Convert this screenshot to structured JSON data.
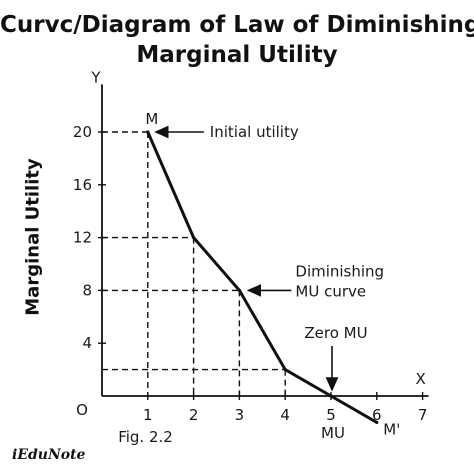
{
  "title_lines": [
    "Curvc/Diagram of Law of Diminishing",
    "Marginal Utility"
  ],
  "ylabel": "Marginal Utility",
  "brand": "iEduNote",
  "chart_data": {
    "type": "line",
    "x": [
      1,
      2,
      3,
      4,
      5,
      6
    ],
    "series": [
      {
        "values": [
          20,
          12,
          8,
          2,
          0,
          -2
        ]
      }
    ],
    "xlim": [
      0,
      7
    ],
    "ylim": [
      0,
      23
    ],
    "x_ticks": [
      "1",
      "2",
      "3",
      "4",
      "5",
      "6",
      "7"
    ],
    "y_ticks": [
      "4",
      "8",
      "12",
      "16",
      "20"
    ],
    "origin_label": "O",
    "x_axis_letter": "X",
    "y_axis_letter": "Y",
    "point_labels": {
      "start": "M",
      "end": "M'"
    },
    "under_axis_label": "MU",
    "figure_label": "Fig. 2.2",
    "annotations": [
      {
        "text": "Initial utility",
        "x": 1,
        "y": 20
      },
      {
        "text": "Diminishing\nMU curve",
        "x": 3,
        "y": 8
      },
      {
        "text": "Zero MU",
        "x": 5,
        "y": 0
      }
    ],
    "grid": "dashed guide lines to points",
    "color": "#111111"
  }
}
